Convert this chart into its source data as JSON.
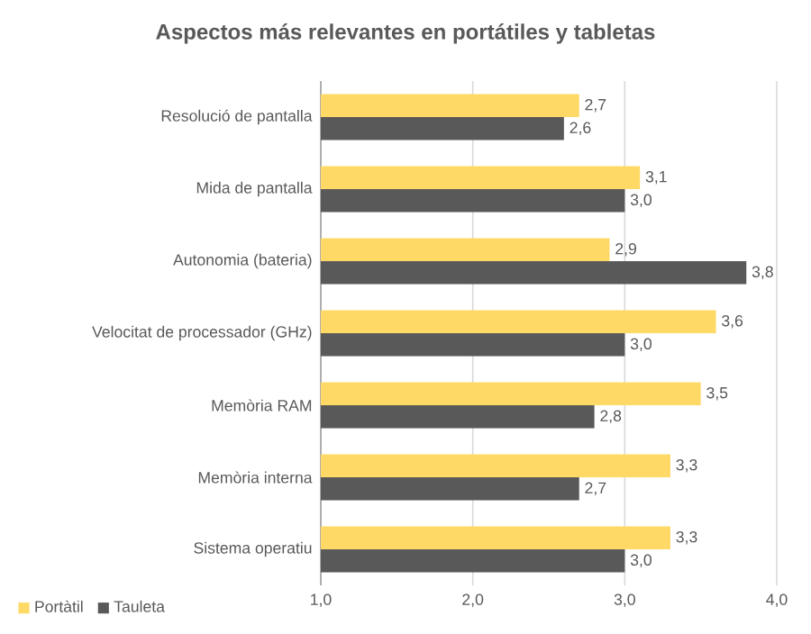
{
  "chart_data": {
    "type": "bar",
    "orientation": "horizontal",
    "title": "Aspectos más relevantes en portátiles y tabletas",
    "categories": [
      "Resolució de pantalla",
      "Mida de pantalla",
      "Autonomia (bateria)",
      "Velocitat de processador (GHz)",
      "Memòria RAM",
      "Memòria interna",
      "Sistema operatiu"
    ],
    "series": [
      {
        "name": "Portàtil",
        "color": "#ffd966",
        "values": [
          2.7,
          3.1,
          2.9,
          3.6,
          3.5,
          3.3,
          3.3
        ],
        "value_labels": [
          "2,7",
          "3,1",
          "2,9",
          "3,6",
          "3,5",
          "3,3",
          "3,3"
        ]
      },
      {
        "name": "Tauleta",
        "color": "#595959",
        "values": [
          2.6,
          3.0,
          3.8,
          3.0,
          2.8,
          2.7,
          3.0
        ],
        "value_labels": [
          "2,6",
          "3,0",
          "3,8",
          "3,0",
          "2,8",
          "2,7",
          "3,0"
        ]
      }
    ],
    "xlim": [
      1,
      4
    ],
    "xticks": [
      {
        "value": 1,
        "label": "1,0"
      },
      {
        "value": 2,
        "label": "2,0"
      },
      {
        "value": 3,
        "label": "3,0"
      },
      {
        "value": 4,
        "label": "4,0"
      }
    ],
    "grid": "x",
    "legend": "bottom left"
  }
}
